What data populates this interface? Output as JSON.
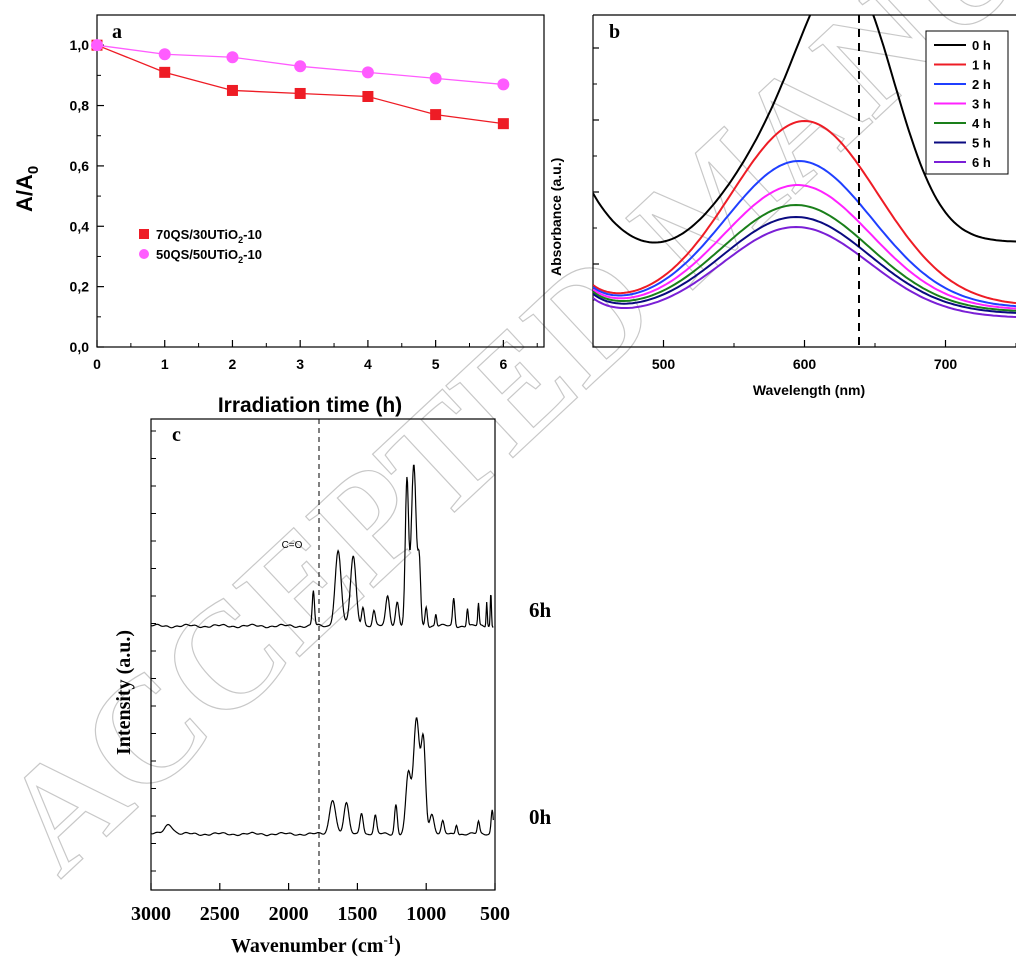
{
  "watermark": "ACCEPTED MANUSCRIPT",
  "chart_data": [
    {
      "panel": "a",
      "type": "line",
      "xlabel": "Irradiation time (h)",
      "ylabel": "A/A0",
      "ylabel_main": "A/A",
      "ylabel_sub": "0",
      "xlim": [
        0,
        6.6
      ],
      "ylim": [
        0,
        1.1
      ],
      "xticks": [
        0,
        1,
        2,
        3,
        4,
        5,
        6
      ],
      "yticks": [
        "0,0",
        "0,2",
        "0,4",
        "0,6",
        "0,8",
        "1,0"
      ],
      "ytick_values": [
        0,
        0.2,
        0.4,
        0.6,
        0.8,
        1.0
      ],
      "legend_position": "center-left",
      "series": [
        {
          "name": "70QS/30UTiO2-10",
          "legend_parts": [
            "70QS/30UTiO",
            "2",
            "-10"
          ],
          "marker": "square",
          "color": "#ee1c25",
          "x": [
            0,
            1,
            2,
            3,
            4,
            5,
            6
          ],
          "y": [
            1.0,
            0.91,
            0.85,
            0.84,
            0.83,
            0.77,
            0.74
          ]
        },
        {
          "name": "50QS/50UTiO2-10",
          "legend_parts": [
            "50QS/50UTiO",
            "2",
            "-10"
          ],
          "marker": "circle",
          "color": "#ff5cff",
          "x": [
            0,
            1,
            2,
            3,
            4,
            5,
            6
          ],
          "y": [
            1.0,
            0.97,
            0.96,
            0.93,
            0.91,
            0.89,
            0.87
          ]
        }
      ]
    },
    {
      "panel": "b",
      "type": "line",
      "xlabel": "Wavelength (nm)",
      "ylabel": "Absorbance (a.u.)",
      "xlim": [
        450,
        750
      ],
      "ylim": [
        0,
        1.1
      ],
      "xticks": [
        500,
        600,
        700
      ],
      "legend_position": "top-right",
      "reference_line_x": 634,
      "series": [
        {
          "name": "0 h",
          "color": "#000000"
        },
        {
          "name": "1 h",
          "color": "#ee1c25"
        },
        {
          "name": "2 h",
          "color": "#1f3fff"
        },
        {
          "name": "3 h",
          "color": "#ff22ff"
        },
        {
          "name": "4 h",
          "color": "#1a7f1a"
        },
        {
          "name": "5 h",
          "color": "#0a0a80"
        },
        {
          "name": "6 h",
          "color": "#7a1fd6"
        }
      ]
    },
    {
      "panel": "c",
      "type": "line",
      "xlabel": "Wavenumber (cm-1)",
      "xlabel_main": "Wavenumber (cm",
      "xlabel_sup": "-1",
      "xlabel_end": ")",
      "ylabel": "Intensity (a.u.)",
      "xlim": [
        3000,
        500
      ],
      "xticks": [
        3000,
        2500,
        2000,
        1500,
        1000,
        500
      ],
      "reference_line_x": 1810,
      "annotation": "C=O",
      "series": [
        {
          "name": "6h",
          "color": "#000000"
        },
        {
          "name": "0h",
          "color": "#000000"
        }
      ]
    }
  ]
}
